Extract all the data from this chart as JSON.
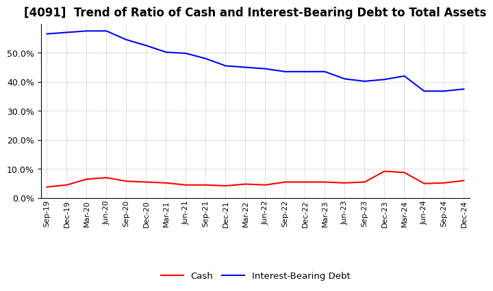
{
  "title": "[4091]  Trend of Ratio of Cash and Interest-Bearing Debt to Total Assets",
  "x_labels": [
    "Sep-19",
    "Dec-19",
    "Mar-20",
    "Jun-20",
    "Sep-20",
    "Dec-20",
    "Mar-21",
    "Jun-21",
    "Sep-21",
    "Dec-21",
    "Mar-22",
    "Jun-22",
    "Sep-22",
    "Dec-22",
    "Mar-23",
    "Jun-23",
    "Sep-23",
    "Dec-23",
    "Mar-24",
    "Jun-24",
    "Sep-24",
    "Dec-24"
  ],
  "cash": [
    3.8,
    4.5,
    6.5,
    7.0,
    5.8,
    5.5,
    5.2,
    4.5,
    4.5,
    4.2,
    4.8,
    4.5,
    5.5,
    5.5,
    5.5,
    5.2,
    5.5,
    9.2,
    8.8,
    5.0,
    5.2,
    6.0
  ],
  "ibd": [
    56.5,
    57.0,
    57.5,
    57.5,
    54.5,
    52.5,
    50.2,
    49.8,
    48.0,
    45.5,
    45.0,
    44.5,
    43.5,
    43.5,
    43.5,
    41.0,
    40.2,
    40.8,
    42.0,
    36.8,
    36.8,
    37.5
  ],
  "cash_color": "#FF0000",
  "ibd_color": "#0000FF",
  "bg_color": "#FFFFFF",
  "plot_bg_color": "#FFFFFF",
  "ylim": [
    0,
    60
  ],
  "yticks": [
    0.0,
    10.0,
    20.0,
    30.0,
    40.0,
    50.0
  ],
  "line_width": 1.5,
  "legend_cash": "Cash",
  "legend_ibd": "Interest-Bearing Debt",
  "title_fontsize": 12,
  "tick_fontsize": 9,
  "xlabel_fontsize": 8
}
